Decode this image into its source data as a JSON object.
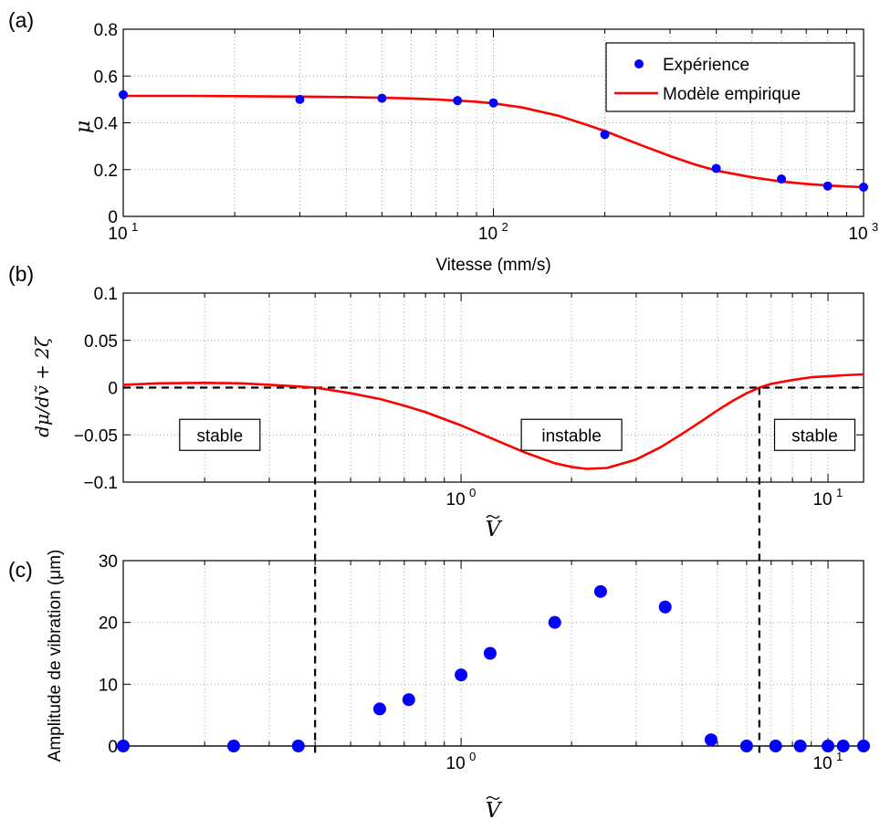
{
  "chart_data": [
    {
      "panel_label": "(a)",
      "type": "scatter+line",
      "x_scale": "log",
      "xlim": [
        10,
        1000
      ],
      "ylim": [
        0,
        0.8
      ],
      "xlabel": "Vitesse (mm/s)",
      "ylabel": "μ",
      "xtick_labels": [
        {
          "base": "10",
          "exp": "1",
          "value": 10
        },
        {
          "base": "10",
          "exp": "2",
          "value": 100
        },
        {
          "base": "10",
          "exp": "3",
          "value": 1000
        }
      ],
      "yticks": [
        "0",
        "0.2",
        "0.4",
        "0.6",
        "0.8"
      ],
      "grid": true,
      "legend": {
        "placement": "top-right",
        "entries": [
          "Expérience",
          "Modèle empirique"
        ]
      },
      "series": [
        {
          "name": "Expérience",
          "kind": "markers",
          "color": "#0000ff",
          "x": [
            10,
            30,
            50,
            80,
            100,
            200,
            400,
            600,
            800,
            1000
          ],
          "y": [
            0.52,
            0.5,
            0.505,
            0.495,
            0.485,
            0.35,
            0.205,
            0.16,
            0.13,
            0.125
          ]
        },
        {
          "name": "Modèle empirique",
          "kind": "line",
          "color": "#ff0000",
          "x": [
            10,
            15,
            20,
            30,
            40,
            50,
            60,
            70,
            80,
            90,
            100,
            120,
            150,
            180,
            200,
            250,
            300,
            350,
            400,
            500,
            600,
            700,
            800,
            900,
            1000
          ],
          "y": [
            0.515,
            0.515,
            0.514,
            0.512,
            0.51,
            0.507,
            0.504,
            0.5,
            0.495,
            0.49,
            0.483,
            0.465,
            0.43,
            0.39,
            0.365,
            0.305,
            0.258,
            0.222,
            0.196,
            0.167,
            0.149,
            0.139,
            0.132,
            0.128,
            0.125
          ]
        }
      ]
    },
    {
      "panel_label": "(b)",
      "type": "line",
      "x_scale": "log",
      "xlim": [
        0.12,
        12.5
      ],
      "ylim": [
        -0.1,
        0.1
      ],
      "xlabel": "V",
      "ylabel": "dμ/dṽ + 2ζ",
      "xtick_labels": [
        {
          "base": "10",
          "exp": "0",
          "value": 1
        },
        {
          "base": "10",
          "exp": "1",
          "value": 10
        }
      ],
      "yticks": [
        "−0.1",
        "−0.05",
        "0",
        "0.05",
        "0.1"
      ],
      "grid": true,
      "zero_line": {
        "style": "dashed",
        "color": "#000000"
      },
      "region_labels": [
        {
          "text": "stable",
          "x": 0.22,
          "y": -0.05
        },
        {
          "text": "instable",
          "x": 2.0,
          "y": -0.05
        },
        {
          "text": "stable",
          "x": 9.2,
          "y": -0.05
        }
      ],
      "series": [
        {
          "name": "",
          "kind": "line",
          "color": "#ff0000",
          "x": [
            0.12,
            0.15,
            0.2,
            0.25,
            0.3,
            0.35,
            0.4,
            0.5,
            0.6,
            0.7,
            0.8,
            1.0,
            1.2,
            1.5,
            1.8,
            2.0,
            2.2,
            2.5,
            3.0,
            3.5,
            4.0,
            4.5,
            5.0,
            5.5,
            6.0,
            6.5,
            7.0,
            8.0,
            9.0,
            10.0,
            11.0,
            12.5
          ],
          "y": [
            0.003,
            0.0045,
            0.005,
            0.0045,
            0.003,
            0.0015,
            0.0,
            -0.006,
            -0.012,
            -0.019,
            -0.026,
            -0.04,
            -0.053,
            -0.069,
            -0.08,
            -0.084,
            -0.086,
            -0.085,
            -0.076,
            -0.063,
            -0.049,
            -0.036,
            -0.024,
            -0.014,
            -0.006,
            0.0,
            0.004,
            0.008,
            0.011,
            0.012,
            0.013,
            0.014
          ]
        }
      ]
    },
    {
      "panel_label": "(c)",
      "type": "scatter",
      "x_scale": "log",
      "xlim": [
        0.12,
        12.5
      ],
      "ylim": [
        0,
        30
      ],
      "xlabel": "V",
      "ylabel": "Amplitude de vibration (μm)",
      "xtick_labels": [
        {
          "base": "10",
          "exp": "0",
          "value": 1
        },
        {
          "base": "10",
          "exp": "1",
          "value": 10
        }
      ],
      "yticks": [
        "0",
        "10",
        "20",
        "30"
      ],
      "grid": true,
      "series": [
        {
          "name": "",
          "kind": "markers",
          "color": "#0000ff",
          "x": [
            0.12,
            0.24,
            0.36,
            0.6,
            0.72,
            1.0,
            1.2,
            1.8,
            2.4,
            3.6,
            4.8,
            6.0,
            7.2,
            8.4,
            10.0,
            11.0,
            12.5
          ],
          "y": [
            0,
            0,
            0,
            6,
            7.5,
            11.5,
            15,
            20,
            25,
            22.5,
            1,
            0,
            0,
            0,
            0,
            0,
            0
          ]
        }
      ]
    }
  ],
  "stability_boundaries": [
    0.4,
    6.5
  ]
}
